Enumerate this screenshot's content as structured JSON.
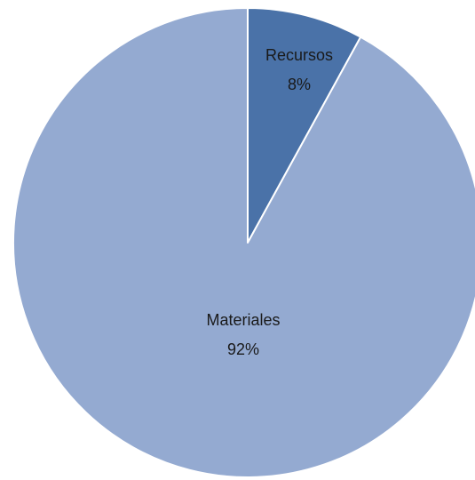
{
  "chart_data": {
    "type": "pie",
    "title": "",
    "slices": [
      {
        "label": "Recursos",
        "value": 8,
        "value_label": "8%",
        "color": "#4a72a8"
      },
      {
        "label": "Materiales",
        "value": 92,
        "value_label": "92%",
        "color": "#94aad1"
      }
    ],
    "start_angle_deg": 0,
    "direction": "clockwise",
    "legend": "none",
    "data_labels": "category and percentage"
  }
}
